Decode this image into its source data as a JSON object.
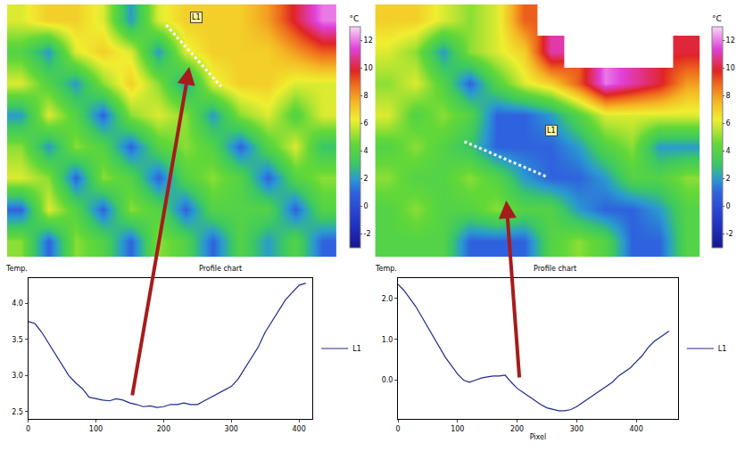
{
  "chart_data": [
    {
      "type": "heatmap",
      "colorbar_title": "°C",
      "colorbar_range": [
        -3,
        13
      ],
      "colorbar_ticks": [
        -2,
        0,
        2,
        4,
        6,
        8,
        10,
        12
      ],
      "cells": [
        [
          6,
          7,
          7,
          6,
          2,
          6,
          7,
          7,
          7,
          8,
          10,
          12
        ],
        [
          4,
          2,
          6,
          7,
          6,
          2,
          6,
          7,
          7,
          7,
          8,
          9
        ],
        [
          6,
          4,
          2,
          5,
          7,
          5,
          2,
          6,
          7,
          7,
          6,
          6
        ],
        [
          2,
          6,
          4,
          1,
          5,
          6,
          5,
          2,
          5,
          6,
          4,
          6
        ],
        [
          5,
          2,
          5,
          4,
          1,
          4,
          5,
          4,
          1,
          4,
          6,
          3
        ],
        [
          6,
          5,
          1,
          5,
          4,
          1,
          4,
          5,
          4,
          1,
          4,
          5
        ],
        [
          1,
          6,
          4,
          1,
          5,
          4,
          1,
          4,
          4,
          4,
          1,
          4
        ],
        [
          5,
          1,
          5,
          4,
          1,
          5,
          4,
          1,
          4,
          2,
          4,
          1
        ]
      ],
      "profile_line": {
        "x": [
          5.3,
          7.3
        ],
        "y": [
          0.15,
          2.1
        ]
      },
      "annotations": [
        {
          "text": "L1",
          "x": 6.4,
          "y": -0.1
        }
      ]
    },
    {
      "type": "heatmap",
      "colorbar_title": "°C",
      "colorbar_range": [
        -3,
        13
      ],
      "colorbar_ticks": [
        -2,
        0,
        2,
        4,
        6,
        8,
        10,
        12
      ],
      "cells": [
        [
          7,
          7,
          6,
          5,
          6,
          9,
          null,
          null,
          null,
          null,
          null,
          null
        ],
        [
          6,
          5,
          2,
          5,
          6,
          7,
          11,
          null,
          null,
          null,
          null,
          10
        ],
        [
          5,
          6,
          4,
          1,
          4,
          6,
          7,
          9,
          12,
          11,
          10,
          8
        ],
        [
          6,
          4,
          5,
          4,
          1,
          1,
          2,
          4,
          6,
          6,
          6,
          6
        ],
        [
          4,
          5,
          4,
          3,
          1,
          1,
          1,
          2,
          4,
          5,
          2,
          2
        ],
        [
          5,
          4,
          4,
          5,
          4,
          2,
          1,
          1,
          2,
          4,
          4,
          5
        ],
        [
          4,
          5,
          4,
          4,
          5,
          4,
          4,
          2,
          1,
          1,
          2,
          4
        ],
        [
          4,
          4,
          4,
          1,
          1,
          1,
          4,
          5,
          4,
          1,
          1,
          4
        ]
      ],
      "profile_line": {
        "x": [
          2.8,
          5.8
        ],
        "y": [
          3.85,
          4.95
        ]
      },
      "annotations": [
        {
          "text": "L1",
          "x": 6.0,
          "y": 3.5
        }
      ]
    },
    {
      "type": "line",
      "title": "Profile chart",
      "ylabel": "Temp.",
      "x": [
        0,
        10,
        20,
        30,
        40,
        50,
        60,
        70,
        80,
        90,
        100,
        110,
        120,
        130,
        140,
        150,
        160,
        170,
        180,
        190,
        200,
        210,
        220,
        230,
        240,
        250,
        260,
        270,
        280,
        290,
        300,
        310,
        320,
        330,
        340,
        350,
        360,
        370,
        380,
        390,
        400,
        410
      ],
      "series": [
        {
          "name": "L1",
          "color": "#1c2a8c",
          "values": [
            3.75,
            3.72,
            3.6,
            3.45,
            3.3,
            3.15,
            3.0,
            2.9,
            2.82,
            2.7,
            2.68,
            2.66,
            2.65,
            2.68,
            2.66,
            2.62,
            2.6,
            2.57,
            2.58,
            2.56,
            2.57,
            2.6,
            2.6,
            2.62,
            2.6,
            2.6,
            2.65,
            2.7,
            2.75,
            2.8,
            2.85,
            2.95,
            3.1,
            3.25,
            3.4,
            3.6,
            3.75,
            3.9,
            4.05,
            4.15,
            4.25,
            4.28
          ]
        }
      ],
      "xlim": [
        0,
        420
      ],
      "xticks": [
        0,
        100,
        200,
        300,
        400
      ],
      "ylim": [
        2.4,
        4.35
      ],
      "yticks": [
        {
          "value": 2.5,
          "label": "2.5"
        },
        {
          "value": 3.0,
          "label": "3.0"
        },
        {
          "value": 3.5,
          "label": "3.5"
        },
        {
          "value": 4.0,
          "label": "4.0"
        }
      ],
      "grid": false,
      "legend": "right"
    },
    {
      "type": "line",
      "title": "Profile chart",
      "ylabel": "Temp.",
      "xlabel": "Pixel",
      "x": [
        0,
        10,
        20,
        30,
        40,
        50,
        60,
        70,
        80,
        90,
        100,
        110,
        120,
        130,
        140,
        150,
        160,
        170,
        180,
        190,
        200,
        210,
        220,
        230,
        240,
        250,
        260,
        270,
        280,
        290,
        300,
        310,
        320,
        330,
        340,
        350,
        360,
        370,
        380,
        390,
        400,
        410,
        420,
        430,
        440,
        450,
        455
      ],
      "series": [
        {
          "name": "L1",
          "color": "#1c2a8c",
          "values": [
            2.35,
            2.2,
            2.0,
            1.8,
            1.55,
            1.3,
            1.05,
            0.8,
            0.55,
            0.35,
            0.15,
            0.0,
            -0.05,
            0.0,
            0.05,
            0.08,
            0.1,
            0.1,
            0.12,
            -0.05,
            -0.2,
            -0.3,
            -0.4,
            -0.5,
            -0.6,
            -0.68,
            -0.72,
            -0.75,
            -0.75,
            -0.72,
            -0.65,
            -0.55,
            -0.45,
            -0.35,
            -0.25,
            -0.15,
            -0.05,
            0.1,
            0.2,
            0.3,
            0.45,
            0.6,
            0.8,
            0.95,
            1.05,
            1.15,
            1.2
          ]
        }
      ],
      "xlim": [
        0,
        470
      ],
      "xticks": [
        0,
        100,
        200,
        300,
        400
      ],
      "ylim": [
        -0.95,
        2.5
      ],
      "yticks": [
        {
          "value": 0.0,
          "label": "0.0"
        },
        {
          "value": 1.0,
          "label": "1.0"
        },
        {
          "value": 2.0,
          "label": "2.0"
        }
      ],
      "grid": false,
      "legend": "right"
    }
  ]
}
